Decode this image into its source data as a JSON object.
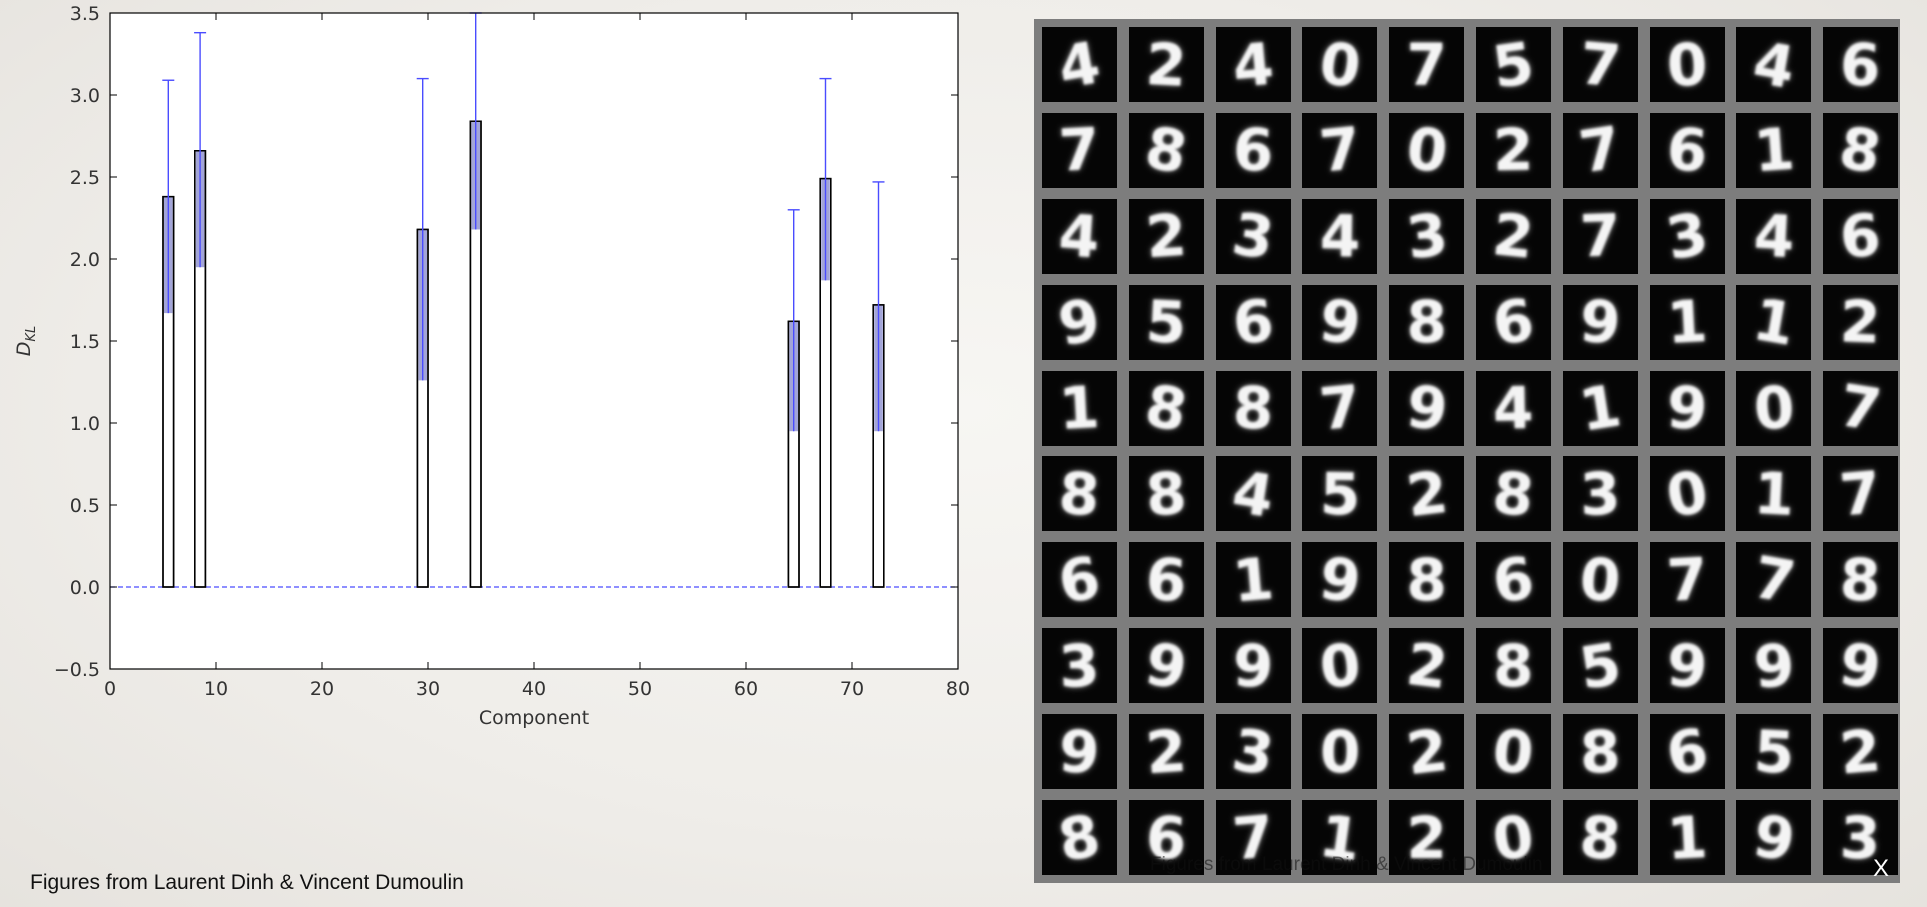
{
  "slide": {
    "caption": "Figures from Laurent Dinh & Vincent Dumoulin",
    "caption_overlay": "Figures from Laurent Dinh & Vincent Dumoulin",
    "close_label": "X"
  },
  "chart_data": {
    "type": "bar",
    "xlabel": "Component",
    "ylabel": "D_KL",
    "xlim": [
      0,
      80
    ],
    "ylim": [
      -0.5,
      3.5
    ],
    "xticks": [
      0,
      10,
      20,
      30,
      40,
      50,
      60,
      70,
      80
    ],
    "yticks": [
      -0.5,
      0.0,
      0.5,
      1.0,
      1.5,
      2.0,
      2.5,
      3.0,
      3.5
    ],
    "grid": false,
    "bar_width": 1,
    "bars": [
      {
        "x": 5.5,
        "value": 2.38,
        "err_low": 1.67,
        "err_high": 3.09
      },
      {
        "x": 8.5,
        "value": 2.66,
        "err_low": 1.95,
        "err_high": 3.38
      },
      {
        "x": 29.5,
        "value": 2.18,
        "err_low": 1.26,
        "err_high": 3.1
      },
      {
        "x": 34.5,
        "value": 2.84,
        "err_low": 2.18,
        "err_high": 3.5
      },
      {
        "x": 64.5,
        "value": 1.62,
        "err_low": 0.95,
        "err_high": 2.3
      },
      {
        "x": 67.5,
        "value": 2.49,
        "err_low": 1.87,
        "err_high": 3.1
      },
      {
        "x": 72.5,
        "value": 1.72,
        "err_low": 0.95,
        "err_high": 2.47
      }
    ],
    "baseline": 0.0,
    "colors": {
      "bar_edge": "#000000",
      "bar_fill": "#ffffff",
      "error": "#4a4cff",
      "error_fill": "#a3a5d8"
    }
  },
  "digits": {
    "rows": [
      [
        "4",
        "2",
        "4",
        "0",
        "7",
        "5",
        "7",
        "0",
        "4",
        "6"
      ],
      [
        "7",
        "8",
        "6",
        "7",
        "0",
        "2",
        "7",
        "6",
        "1",
        "8"
      ],
      [
        "4",
        "2",
        "3",
        "4",
        "3",
        "2",
        "7",
        "3",
        "4",
        "6"
      ],
      [
        "9",
        "5",
        "6",
        "9",
        "8",
        "6",
        "9",
        "1",
        "1",
        "2"
      ],
      [
        "1",
        "8",
        "8",
        "7",
        "9",
        "4",
        "1",
        "9",
        "0",
        "7"
      ],
      [
        "8",
        "8",
        "4",
        "5",
        "2",
        "8",
        "3",
        "0",
        "1",
        "7"
      ],
      [
        "6",
        "6",
        "1",
        "9",
        "8",
        "6",
        "0",
        "7",
        "7",
        "8"
      ],
      [
        "3",
        "9",
        "9",
        "0",
        "2",
        "8",
        "5",
        "9",
        "9",
        "9"
      ],
      [
        "9",
        "2",
        "3",
        "0",
        "2",
        "0",
        "8",
        "6",
        "5",
        "2"
      ],
      [
        "8",
        "6",
        "7",
        "1",
        "2",
        "0",
        "8",
        "1",
        "9",
        "3"
      ]
    ]
  }
}
